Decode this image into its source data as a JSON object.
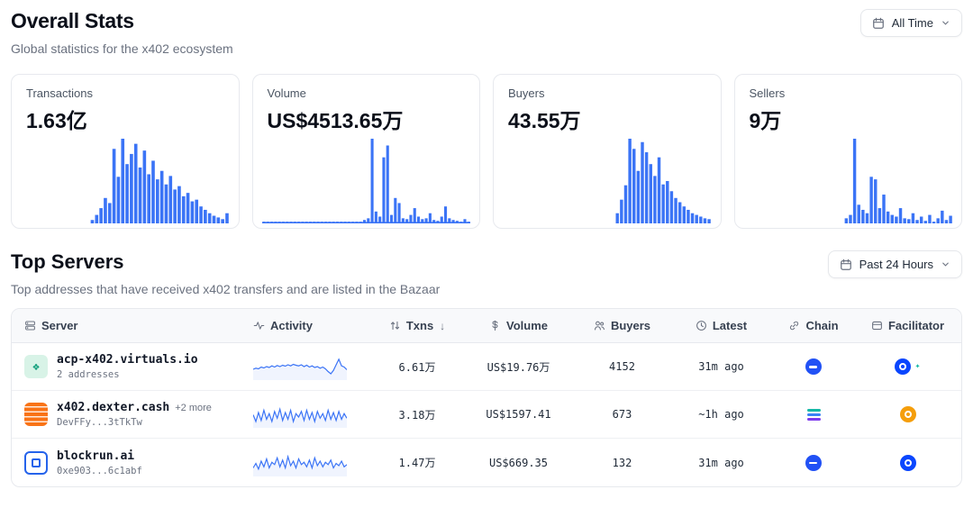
{
  "colors": {
    "chart": "#3b74f6"
  },
  "header": {
    "title": "Overall Stats",
    "subtitle": "Global statistics for the x402 ecosystem",
    "time_filter_label": "All Time"
  },
  "stats": [
    {
      "label": "Transactions",
      "value": "1.63亿",
      "bars": [
        0,
        0,
        0,
        0,
        0,
        0,
        0,
        0,
        0,
        0,
        0,
        0,
        0,
        0,
        0,
        0,
        4,
        10,
        18,
        30,
        24,
        88,
        55,
        100,
        70,
        82,
        94,
        66,
        86,
        58,
        74,
        52,
        62,
        46,
        56,
        40,
        44,
        32,
        36,
        26,
        28,
        20,
        16,
        12,
        9,
        7,
        5,
        12
      ]
    },
    {
      "label": "Volume",
      "value": "US$4513.65万",
      "bars": [
        2,
        2,
        2,
        2,
        2,
        2,
        2,
        2,
        2,
        2,
        2,
        2,
        2,
        2,
        2,
        2,
        2,
        2,
        2,
        2,
        2,
        2,
        2,
        2,
        2,
        2,
        4,
        6,
        100,
        14,
        8,
        78,
        92,
        10,
        30,
        24,
        6,
        5,
        10,
        18,
        8,
        5,
        6,
        12,
        4,
        3,
        8,
        20,
        6,
        4,
        3,
        2,
        5,
        2
      ]
    },
    {
      "label": "Buyers",
      "value": "43.55万",
      "bars": [
        0,
        0,
        0,
        0,
        0,
        0,
        0,
        0,
        0,
        0,
        0,
        0,
        0,
        0,
        0,
        0,
        0,
        0,
        0,
        0,
        0,
        0,
        0,
        0,
        0,
        0,
        0,
        12,
        28,
        45,
        100,
        88,
        62,
        96,
        84,
        70,
        56,
        78,
        46,
        50,
        38,
        30,
        25,
        20,
        16,
        12,
        10,
        8,
        6,
        5
      ]
    },
    {
      "label": "Sellers",
      "value": "9万",
      "bars": [
        0,
        0,
        0,
        0,
        0,
        0,
        0,
        0,
        0,
        0,
        0,
        0,
        0,
        0,
        0,
        0,
        0,
        0,
        0,
        0,
        0,
        0,
        0,
        0,
        6,
        10,
        100,
        22,
        16,
        12,
        55,
        52,
        18,
        34,
        14,
        10,
        8,
        18,
        6,
        5,
        12,
        4,
        8,
        3,
        10,
        2,
        6,
        15,
        4,
        9
      ]
    }
  ],
  "top_servers": {
    "title": "Top Servers",
    "subtitle": "Top addresses that have received x402 transfers and are listed in the Bazaar",
    "time_filter_label": "Past 24 Hours",
    "columns": [
      "Server",
      "Activity",
      "Txns",
      "Volume",
      "Buyers",
      "Latest",
      "Chain",
      "Facilitator"
    ],
    "sort_indicator": "↓",
    "rows": [
      {
        "name": "acp-x402.virtuals.io",
        "extra": "",
        "sub": "2 addresses",
        "txns": "6.61万",
        "volume": "US$19.76万",
        "buyers": "4152",
        "latest": "31m ago",
        "spark": [
          40,
          45,
          42,
          50,
          46,
          52,
          48,
          55,
          50,
          57,
          52,
          58,
          54,
          60,
          55,
          62,
          58,
          55,
          60,
          52,
          58,
          50,
          55,
          48,
          52,
          45,
          50,
          42,
          30,
          20,
          35,
          60,
          85,
          55,
          50,
          38
        ]
      },
      {
        "name": "x402.dexter.cash",
        "extra": "+2 more",
        "sub": "DevFFy...3tTkTw",
        "txns": "3.18万",
        "volume": "US$1597.41",
        "buyers": "673",
        "latest": "~1h ago",
        "spark": [
          50,
          20,
          60,
          25,
          70,
          30,
          55,
          20,
          65,
          35,
          75,
          25,
          60,
          30,
          70,
          20,
          55,
          40,
          65,
          25,
          70,
          30,
          60,
          20,
          65,
          35,
          55,
          25,
          70,
          30,
          60,
          25,
          65,
          30,
          55,
          35
        ]
      },
      {
        "name": "blockrun.ai",
        "extra": "",
        "sub": "0xe903...6c1abf",
        "txns": "1.47万",
        "volume": "US$669.35",
        "buyers": "132",
        "latest": "31m ago",
        "spark": [
          30,
          50,
          25,
          60,
          35,
          70,
          30,
          55,
          45,
          75,
          35,
          65,
          30,
          80,
          40,
          60,
          30,
          70,
          45,
          55,
          35,
          65,
          30,
          75,
          40,
          60,
          35,
          55,
          45,
          65,
          30,
          50,
          40,
          60,
          35,
          45
        ]
      }
    ]
  }
}
